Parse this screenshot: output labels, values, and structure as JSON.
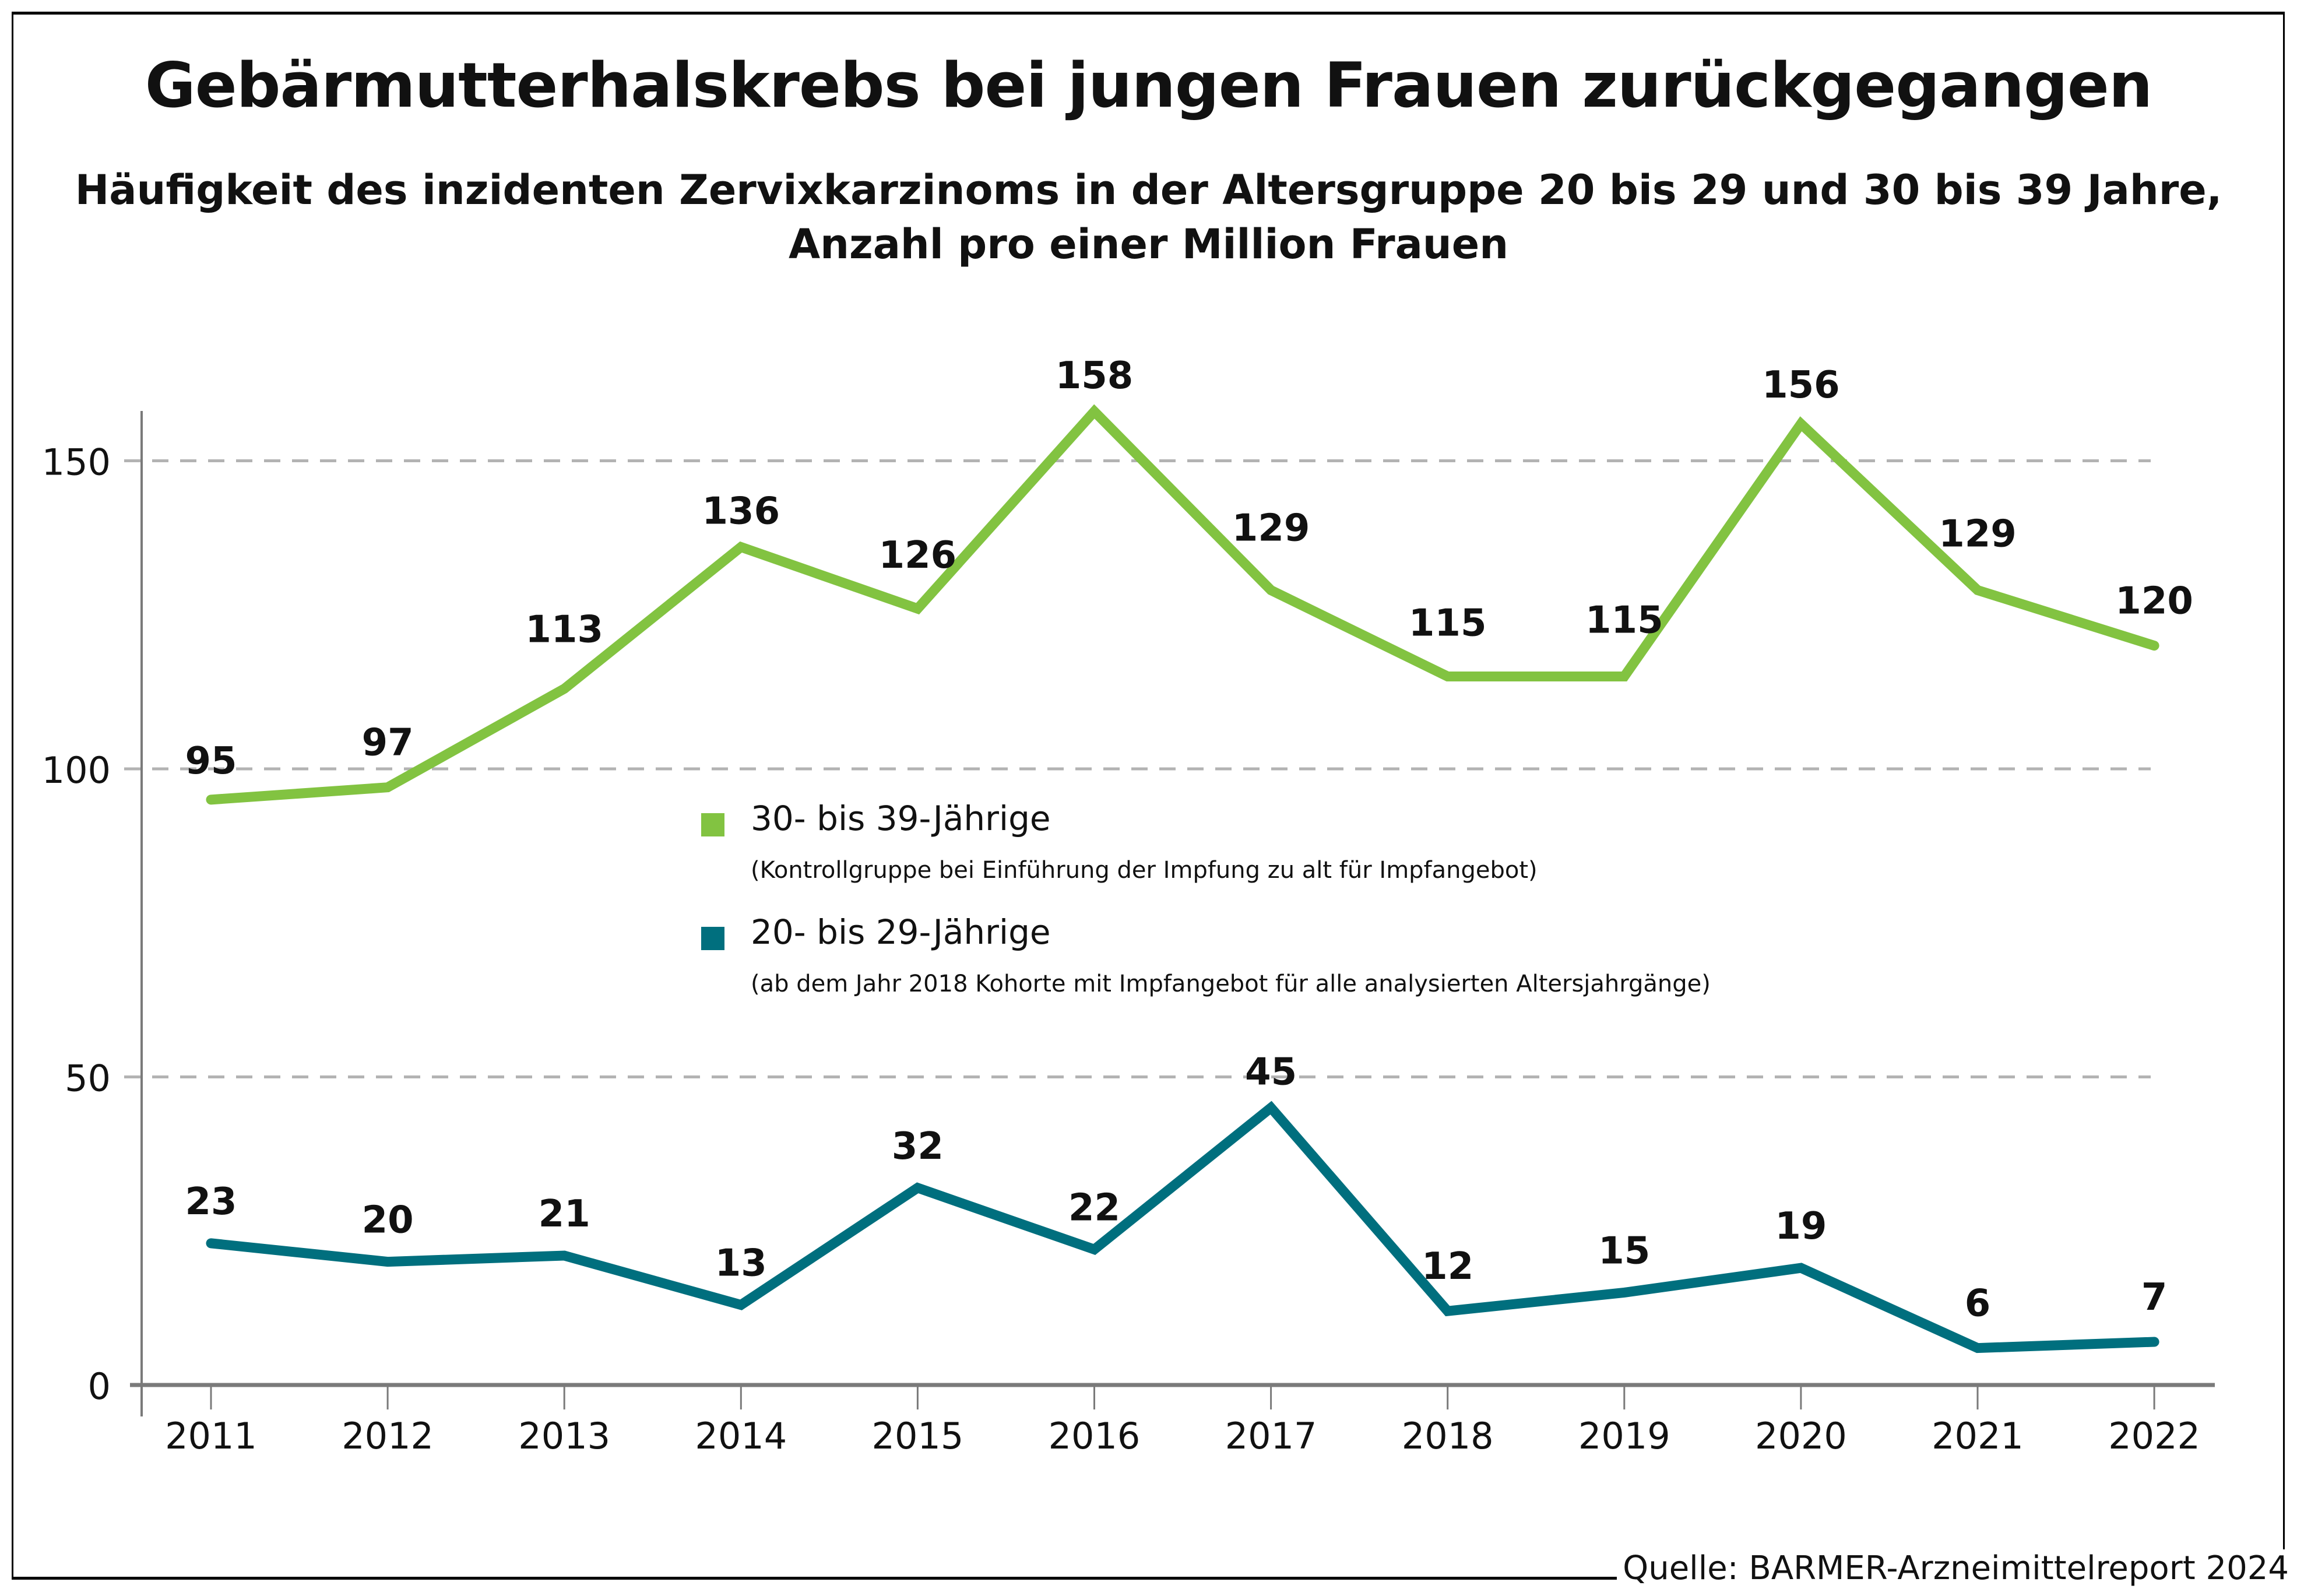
{
  "chart_data": {
    "type": "line",
    "title": "Gebärmutterhalskrebs bei jungen Frauen zurückgegangen",
    "subtitle_lines": [
      "Häufigkeit des inzidenten Zervixkarzinoms in der Altersgruppe 20 bis 29 und 30 bis 39 Jahre,",
      "Anzahl pro einer Million Frauen"
    ],
    "xlabel": "",
    "ylabel": "",
    "x": [
      "2011",
      "2012",
      "2013",
      "2014",
      "2015",
      "2016",
      "2017",
      "2018",
      "2019",
      "2020",
      "2021",
      "2022"
    ],
    "ylim": [
      0,
      165
    ],
    "yticks": [
      0,
      50,
      100,
      150
    ],
    "grid": true,
    "legend_position": "center",
    "series": [
      {
        "name": "30- bis 39-Jährige",
        "note": "(Kontrollgruppe bei Einführung der Impfung zu alt für Impfangebot)",
        "color": "#82c341",
        "values": [
          95,
          97,
          113,
          136,
          126,
          158,
          129,
          115,
          115,
          156,
          129,
          120
        ]
      },
      {
        "name": "20- bis 29-Jährige",
        "note": "(ab dem Jahr 2018 Kohorte mit Impfangebot für alle analysierten Altersjahrgänge)",
        "color": "#006f7e",
        "values": [
          23,
          20,
          21,
          13,
          32,
          22,
          45,
          12,
          15,
          19,
          6,
          7
        ]
      }
    ],
    "source": "Quelle: BARMER-Arzneimittelreport 2024"
  }
}
